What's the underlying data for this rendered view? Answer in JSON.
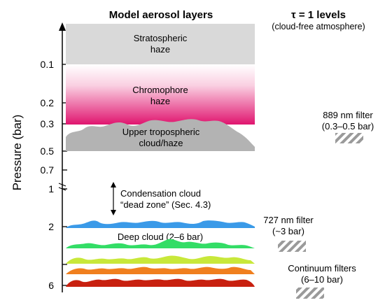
{
  "header": {
    "left_title": "Model aerosol layers",
    "right_title": "τ = 1 levels",
    "right_subtitle": "(cloud-free atmosphere)"
  },
  "axis": {
    "title": "Pressure (bar)",
    "ticks": [
      "0.1",
      "0.2",
      "0.3",
      "0.5",
      "0.7",
      "1",
      "2",
      "6"
    ]
  },
  "layers": {
    "stratospheric": {
      "line1": "Stratospheric",
      "line2": "haze",
      "color": "#d9d9d9"
    },
    "chromophore": {
      "line1": "Chromophore",
      "line2": "haze",
      "color": "#e0156f"
    },
    "upper_tropo": {
      "line1": "Upper tropospheric",
      "line2": "cloud/haze",
      "color": "#b3b3b3"
    },
    "dead_zone": {
      "line1": "Condensation cloud",
      "line2": "“dead zone” (Sec. 4.3)"
    },
    "deep_cloud": {
      "label": "Deep cloud (2–6 bar)"
    },
    "deep_colors": [
      "#3a9ae8",
      "#33dd66",
      "#c8e83a",
      "#f07f1e",
      "#c8200f"
    ]
  },
  "filters": {
    "f889": {
      "line1": "889 nm filter",
      "line2": "(0.3–0.5 bar)"
    },
    "f727": {
      "line1": "727 nm filter",
      "line2": "(~3 bar)"
    },
    "continuum": {
      "line1": "Continuum filters",
      "line2": "(6–10 bar)"
    }
  }
}
